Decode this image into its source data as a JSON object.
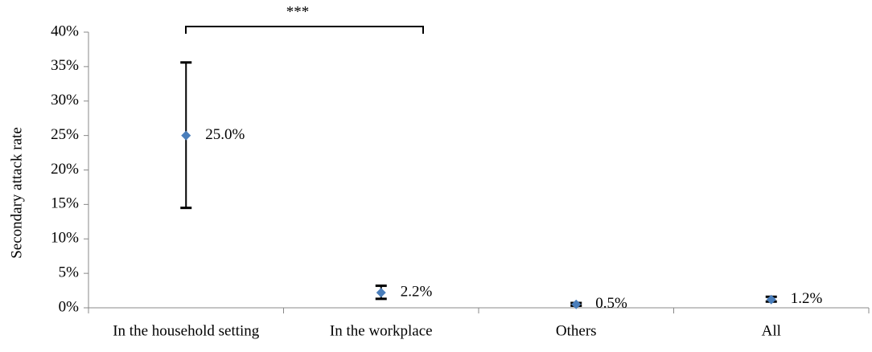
{
  "chart_data": {
    "type": "errorpoint",
    "y_label": "Secondary attack rate",
    "annotation": "***",
    "categories": [
      "In the household setting",
      "In the workplace",
      "Others",
      "All"
    ],
    "values": [
      25.0,
      2.2,
      0.5,
      1.2
    ],
    "value_labels": [
      "25.0%",
      "2.2%",
      "0.5%",
      "1.2%"
    ],
    "ci_lower": [
      14.5,
      1.3,
      0.3,
      0.9
    ],
    "ci_upper": [
      35.6,
      3.2,
      0.7,
      1.6
    ],
    "color": "#4a7ebb",
    "ylim": [
      0,
      40
    ],
    "yticks": [
      {
        "value": 0,
        "label": "0%"
      },
      {
        "value": 5,
        "label": "5%"
      },
      {
        "value": 10,
        "label": "10%"
      },
      {
        "value": 15,
        "label": "15%"
      },
      {
        "value": 20,
        "label": "20%"
      },
      {
        "value": 25,
        "label": "25%"
      },
      {
        "value": 30,
        "label": "30%"
      },
      {
        "value": 35,
        "label": "35%"
      },
      {
        "value": 40,
        "label": "40%"
      }
    ]
  }
}
